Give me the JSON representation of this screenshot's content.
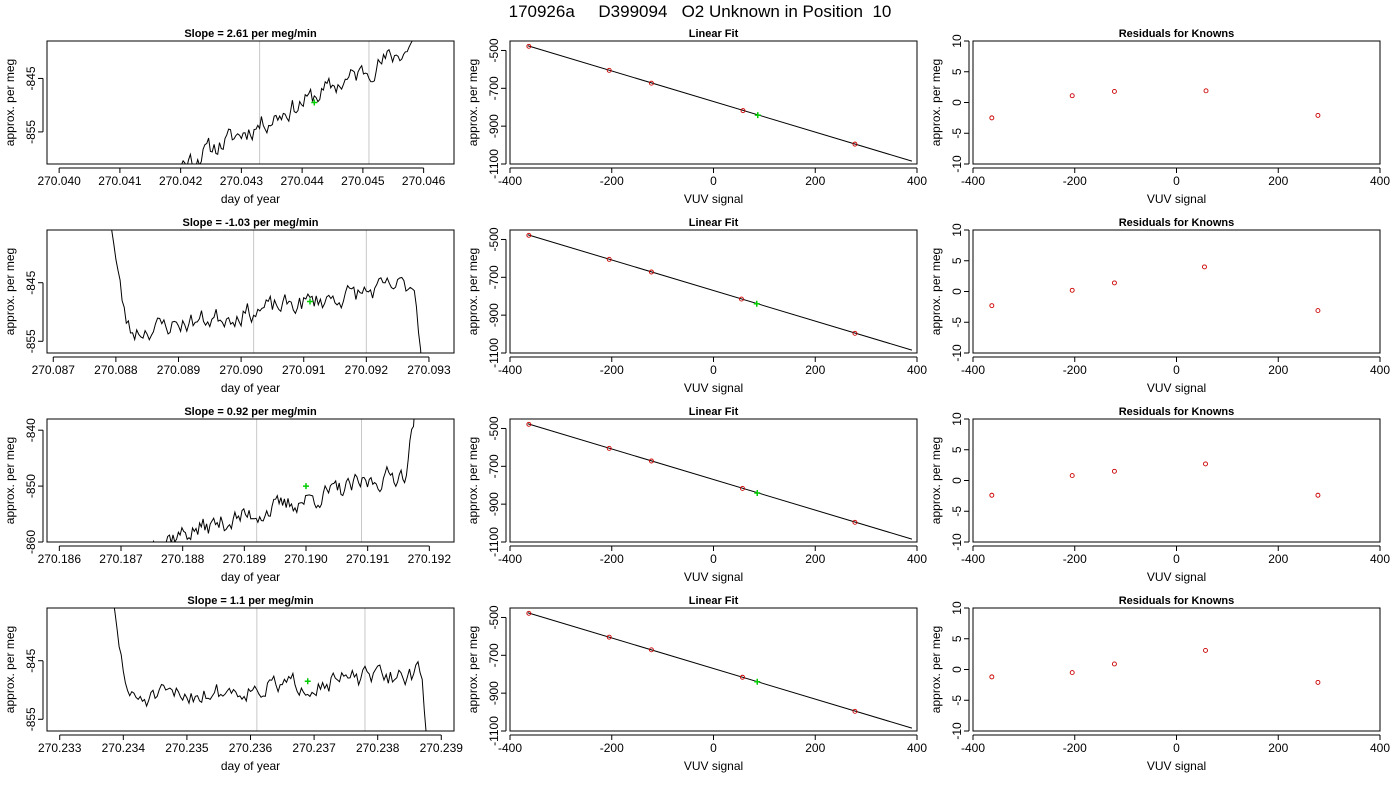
{
  "page_title": "170926a     D399094   O2 Unknown in Position  10",
  "colors": {
    "trace": "#000000",
    "guide_line": "#c8c8c8",
    "fit_line": "#000000",
    "known_point": "#cc0000",
    "unknown_point": "#00cc00"
  },
  "chart_data": [
    {
      "type": "line",
      "row": 0,
      "col": 0,
      "title": "Slope =  2.61  per meg/min",
      "xlabel": "day of year",
      "ylabel": "approx. per meg",
      "xlim": [
        270.0398,
        270.0465
      ],
      "ylim": [
        -861,
        -838
      ],
      "x_ticks": [
        270.04,
        270.041,
        270.042,
        270.043,
        270.044,
        270.045,
        270.046
      ],
      "x_tick_labels": [
        "270.040",
        "270.041",
        "270.042",
        "270.043",
        "270.044",
        "270.045",
        "270.046"
      ],
      "y_ticks": [
        -845,
        -855
      ],
      "y_tick_labels": [
        "-845",
        "-855"
      ],
      "guide_lines_x": [
        270.0433,
        270.0451
      ],
      "unknown_point": {
        "x": 270.0442,
        "y": -849.5
      },
      "trace": {
        "x_start": 270.0415,
        "x_end": 270.046,
        "y_start": -864,
        "y_end": -838,
        "drift": 10,
        "noise": 2.6,
        "seed": 11,
        "end_hook": 20
      }
    },
    {
      "type": "scatter",
      "row": 0,
      "col": 1,
      "title": "Linear Fit",
      "xlabel": "VUV signal",
      "ylabel": "approx. per meg",
      "xlim": [
        -400,
        400
      ],
      "ylim": [
        -1100,
        -450
      ],
      "x_ticks": [
        -400,
        -200,
        0,
        200,
        400
      ],
      "x_tick_labels": [
        "-400",
        "-200",
        "0",
        "200",
        "400"
      ],
      "y_ticks": [
        -500,
        -700,
        -900,
        -1100
      ],
      "y_tick_labels": [
        "-500",
        "-700",
        "-900",
        "-1100"
      ],
      "fit_line": {
        "x": [
          -365,
          390
        ],
        "y": [
          -475,
          -1085
        ]
      },
      "known_points": [
        {
          "x": -363,
          "y": -478
        },
        {
          "x": -205,
          "y": -605
        },
        {
          "x": -122,
          "y": -673
        },
        {
          "x": 58,
          "y": -818
        },
        {
          "x": 278,
          "y": -995
        }
      ],
      "unknown_points": [
        {
          "x": 87,
          "y": -842
        }
      ]
    },
    {
      "type": "scatter",
      "row": 0,
      "col": 2,
      "title": "Residuals for Knowns",
      "xlabel": "VUV signal",
      "ylabel": "approx. per meg",
      "xlim": [
        -400,
        400
      ],
      "ylim": [
        -10,
        10
      ],
      "x_ticks": [
        -400,
        -200,
        0,
        200,
        400
      ],
      "x_tick_labels": [
        "-400",
        "-200",
        "0",
        "200",
        "400"
      ],
      "y_ticks": [
        10,
        5,
        0,
        -5,
        -10
      ],
      "y_tick_labels": [
        "10",
        "5",
        "0",
        "-5",
        "-10"
      ],
      "known_points": [
        {
          "x": -363,
          "y": -2.5
        },
        {
          "x": -205,
          "y": 1.1
        },
        {
          "x": -122,
          "y": 1.8
        },
        {
          "x": 58,
          "y": 1.9
        },
        {
          "x": 278,
          "y": -2.1
        }
      ]
    },
    {
      "type": "line",
      "row": 1,
      "col": 0,
      "title": "Slope =  -1.03  per meg/min",
      "xlabel": "day of year",
      "ylabel": "approx. per meg",
      "xlim": [
        270.0869,
        270.0934
      ],
      "ylim": [
        -857,
        -836
      ],
      "x_ticks": [
        270.087,
        270.088,
        270.089,
        270.09,
        270.091,
        270.092,
        270.093
      ],
      "x_tick_labels": [
        "270.087",
        "270.088",
        "270.089",
        "270.090",
        "270.091",
        "270.092",
        "270.093"
      ],
      "y_ticks": [
        -845,
        -855
      ],
      "y_tick_labels": [
        "-845",
        "-855"
      ],
      "guide_lines_x": [
        270.0902,
        270.092
      ],
      "unknown_point": {
        "x": 270.0911,
        "y": -848.2
      },
      "trace": {
        "x_start": 270.0879,
        "x_end": 270.0929,
        "y_start": -854,
        "y_end": -845,
        "drift": 9,
        "noise": 2.4,
        "seed": 23,
        "start_drop": 22,
        "end_drop": -16
      }
    },
    {
      "type": "scatter",
      "row": 1,
      "col": 1,
      "title": "Linear Fit",
      "xlabel": "VUV signal",
      "ylabel": "approx. per meg",
      "xlim": [
        -400,
        400
      ],
      "ylim": [
        -1100,
        -450
      ],
      "x_ticks": [
        -400,
        -200,
        0,
        200,
        400
      ],
      "x_tick_labels": [
        "-400",
        "-200",
        "0",
        "200",
        "400"
      ],
      "y_ticks": [
        -500,
        -700,
        -900,
        -1100
      ],
      "y_tick_labels": [
        "-500",
        "-700",
        "-900",
        "-1100"
      ],
      "fit_line": {
        "x": [
          -365,
          390
        ],
        "y": [
          -475,
          -1085
        ]
      },
      "known_points": [
        {
          "x": -363,
          "y": -478
        },
        {
          "x": -205,
          "y": -605
        },
        {
          "x": -122,
          "y": -672
        },
        {
          "x": 55,
          "y": -815
        },
        {
          "x": 278,
          "y": -996
        }
      ],
      "unknown_points": [
        {
          "x": 85,
          "y": -840
        }
      ]
    },
    {
      "type": "scatter",
      "row": 1,
      "col": 2,
      "title": "Residuals for Knowns",
      "xlabel": "VUV signal",
      "ylabel": "approx. per meg",
      "xlim": [
        -400,
        400
      ],
      "ylim": [
        -10,
        10
      ],
      "x_ticks": [
        -400,
        -200,
        0,
        200,
        400
      ],
      "x_tick_labels": [
        "-400",
        "-200",
        "0",
        "200",
        "400"
      ],
      "y_ticks": [
        10,
        5,
        0,
        -5,
        -10
      ],
      "y_tick_labels": [
        "10",
        "5",
        "0",
        "-5",
        "-10"
      ],
      "known_points": [
        {
          "x": -363,
          "y": -2.3
        },
        {
          "x": -205,
          "y": 0.2
        },
        {
          "x": -122,
          "y": 1.4
        },
        {
          "x": 55,
          "y": 4.0
        },
        {
          "x": 278,
          "y": -3.1
        }
      ]
    },
    {
      "type": "line",
      "row": 2,
      "col": 0,
      "title": "Slope =  0.92  per meg/min",
      "xlabel": "day of year",
      "ylabel": "approx. per meg",
      "xlim": [
        270.1858,
        270.1924
      ],
      "ylim": [
        -860,
        -838
      ],
      "x_ticks": [
        270.186,
        270.187,
        270.188,
        270.189,
        270.19,
        270.191,
        270.192
      ],
      "x_tick_labels": [
        "270.186",
        "270.187",
        "270.188",
        "270.189",
        "270.190",
        "270.191",
        "270.192"
      ],
      "y_ticks": [
        -840,
        -850,
        -860
      ],
      "y_tick_labels": [
        "-840",
        "-850",
        "-860"
      ],
      "guide_lines_x": [
        270.1892,
        270.1909
      ],
      "unknown_point": {
        "x": 270.19,
        "y": -850.0
      },
      "trace": {
        "x_start": 270.1875,
        "x_end": 270.1918,
        "y_start": -860,
        "y_end": -847,
        "drift": 13,
        "noise": 2.4,
        "seed": 37,
        "end_hook": 14
      }
    },
    {
      "type": "scatter",
      "row": 2,
      "col": 1,
      "title": "Linear Fit",
      "xlabel": "VUV signal",
      "ylabel": "approx. per meg",
      "xlim": [
        -400,
        400
      ],
      "ylim": [
        -1100,
        -450
      ],
      "x_ticks": [
        -400,
        -200,
        0,
        200,
        400
      ],
      "x_tick_labels": [
        "-400",
        "-200",
        "0",
        "200",
        "400"
      ],
      "y_ticks": [
        -500,
        -700,
        -900,
        -1100
      ],
      "y_tick_labels": [
        "-500",
        "-700",
        "-900",
        "-1100"
      ],
      "fit_line": {
        "x": [
          -365,
          390
        ],
        "y": [
          -475,
          -1085
        ]
      },
      "known_points": [
        {
          "x": -363,
          "y": -478
        },
        {
          "x": -205,
          "y": -605
        },
        {
          "x": -122,
          "y": -672
        },
        {
          "x": 57,
          "y": -817
        },
        {
          "x": 278,
          "y": -996
        }
      ],
      "unknown_points": [
        {
          "x": 86,
          "y": -841
        }
      ]
    },
    {
      "type": "scatter",
      "row": 2,
      "col": 2,
      "title": "Residuals for Knowns",
      "xlabel": "VUV signal",
      "ylabel": "approx. per meg",
      "xlim": [
        -400,
        400
      ],
      "ylim": [
        -10,
        10
      ],
      "x_ticks": [
        -400,
        -200,
        0,
        200,
        400
      ],
      "x_tick_labels": [
        "-400",
        "-200",
        "0",
        "200",
        "400"
      ],
      "y_ticks": [
        10,
        5,
        0,
        -5,
        -10
      ],
      "y_tick_labels": [
        "10",
        "5",
        "0",
        "-5",
        "-10"
      ],
      "known_points": [
        {
          "x": -363,
          "y": -2.4
        },
        {
          "x": -205,
          "y": 0.8
        },
        {
          "x": -122,
          "y": 1.5
        },
        {
          "x": 57,
          "y": 2.7
        },
        {
          "x": 278,
          "y": -2.4
        }
      ]
    },
    {
      "type": "line",
      "row": 3,
      "col": 0,
      "title": "Slope =  1.1  per meg/min",
      "xlabel": "day of year",
      "ylabel": "approx. per meg",
      "xlim": [
        270.2328,
        270.2392
      ],
      "ylim": [
        -857,
        -836
      ],
      "x_ticks": [
        270.233,
        270.234,
        270.235,
        270.236,
        270.237,
        270.238,
        270.239
      ],
      "x_tick_labels": [
        "270.233",
        "270.234",
        "270.235",
        "270.236",
        "270.237",
        "270.238",
        "270.239"
      ],
      "y_ticks": [
        -845,
        -855
      ],
      "y_tick_labels": [
        "-845",
        "-855"
      ],
      "guide_lines_x": [
        270.2361,
        270.2378
      ],
      "unknown_point": {
        "x": 270.2369,
        "y": -848.5
      },
      "trace": {
        "x_start": 270.2338,
        "x_end": 270.2388,
        "y_start": -852,
        "y_end": -847,
        "drift": 5,
        "noise": 2.3,
        "seed": 51,
        "start_drop": 20,
        "end_drop": -14
      }
    },
    {
      "type": "scatter",
      "row": 3,
      "col": 1,
      "title": "Linear Fit",
      "xlabel": "VUV signal",
      "ylabel": "approx. per meg",
      "xlim": [
        -400,
        400
      ],
      "ylim": [
        -1100,
        -450
      ],
      "x_ticks": [
        -400,
        -200,
        0,
        200,
        400
      ],
      "x_tick_labels": [
        "-400",
        "-200",
        "0",
        "200",
        "400"
      ],
      "y_ticks": [
        -500,
        -700,
        -900,
        -1100
      ],
      "y_tick_labels": [
        "-500",
        "-700",
        "-900",
        "-1100"
      ],
      "fit_line": {
        "x": [
          -365,
          390
        ],
        "y": [
          -475,
          -1085
        ]
      },
      "known_points": [
        {
          "x": -363,
          "y": -478
        },
        {
          "x": -205,
          "y": -604
        },
        {
          "x": -122,
          "y": -671
        },
        {
          "x": 57,
          "y": -816
        },
        {
          "x": 278,
          "y": -996
        }
      ],
      "unknown_points": [
        {
          "x": 86,
          "y": -840
        }
      ]
    },
    {
      "type": "scatter",
      "row": 3,
      "col": 2,
      "title": "Residuals for Knowns",
      "xlabel": "VUV signal",
      "ylabel": "approx. per meg",
      "xlim": [
        -400,
        400
      ],
      "ylim": [
        -10,
        10
      ],
      "x_ticks": [
        -400,
        -200,
        0,
        200,
        400
      ],
      "x_tick_labels": [
        "-400",
        "-200",
        "0",
        "200",
        "400"
      ],
      "y_ticks": [
        10,
        5,
        0,
        -5,
        -10
      ],
      "y_tick_labels": [
        "10",
        "5",
        "0",
        "-5",
        "-10"
      ],
      "known_points": [
        {
          "x": -363,
          "y": -1.2
        },
        {
          "x": -205,
          "y": -0.5
        },
        {
          "x": -122,
          "y": 0.9
        },
        {
          "x": 57,
          "y": 3.1
        },
        {
          "x": 278,
          "y": -2.1
        }
      ]
    }
  ]
}
